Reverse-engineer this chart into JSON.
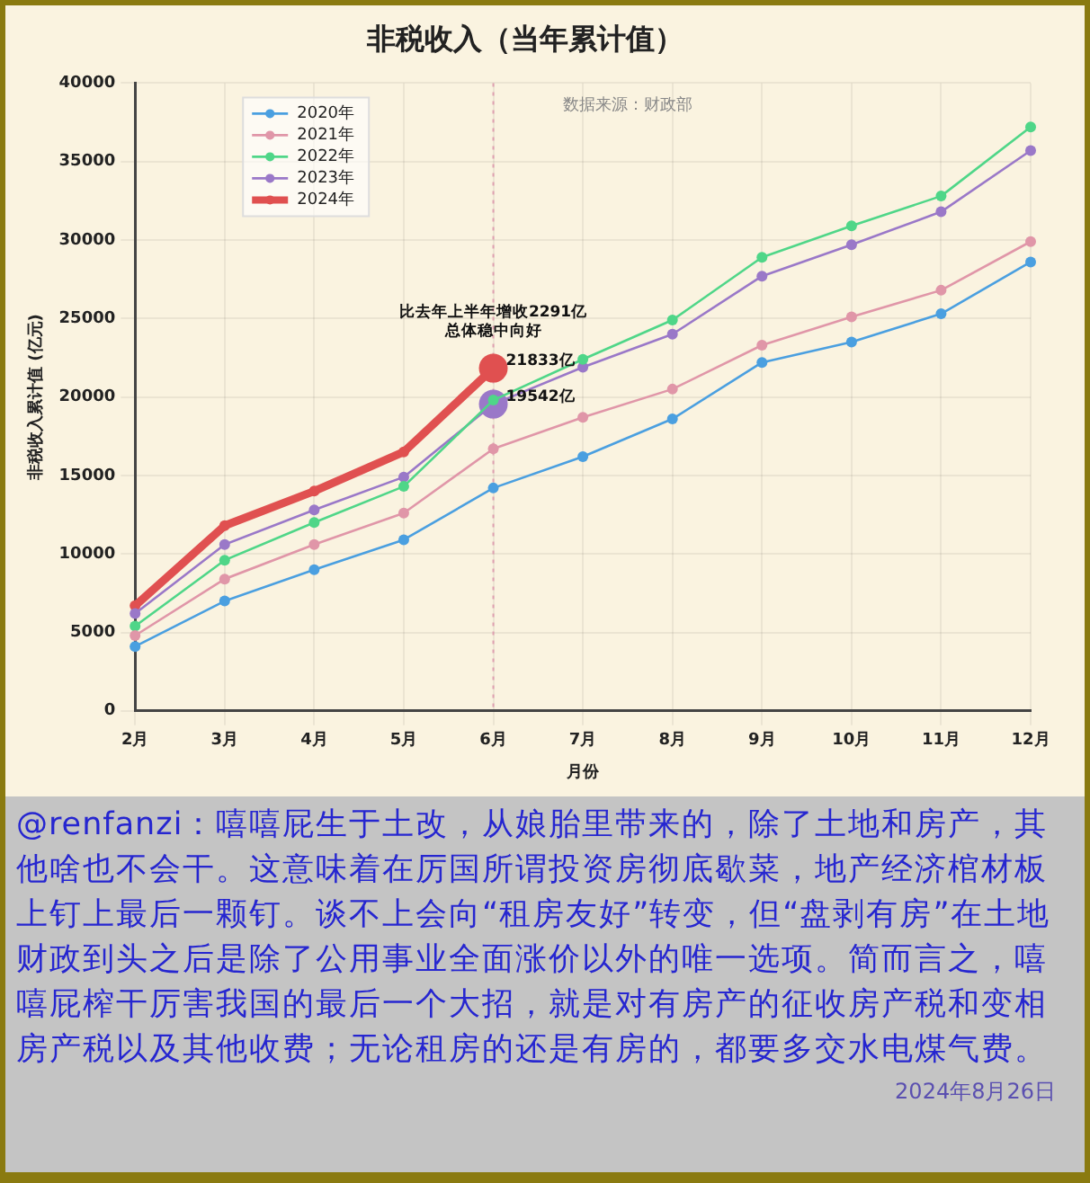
{
  "chart_data": {
    "type": "line",
    "title": "非税收入（当年累计值）",
    "xlabel": "月份",
    "ylabel": "非税收入累计值 (亿元)",
    "categories": [
      "2月",
      "3月",
      "4月",
      "5月",
      "6月",
      "7月",
      "8月",
      "9月",
      "10月",
      "11月",
      "12月"
    ],
    "series": [
      {
        "name": "2020年",
        "color": "#4a9fe0",
        "values": [
          4100,
          7000,
          9000,
          10900,
          14200,
          16200,
          18600,
          22200,
          23500,
          25300,
          28600
        ]
      },
      {
        "name": "2021年",
        "color": "#e096a8",
        "values": [
          4800,
          8400,
          10600,
          12600,
          16700,
          18700,
          20500,
          23300,
          25100,
          26800,
          29900
        ]
      },
      {
        "name": "2022年",
        "color": "#4fd688",
        "values": [
          5400,
          9600,
          12000,
          14300,
          19800,
          22400,
          24900,
          28900,
          30900,
          32800,
          37200
        ]
      },
      {
        "name": "2023年",
        "color": "#9a78c8",
        "values": [
          6200,
          10600,
          12800,
          14900,
          19542,
          21900,
          24000,
          27700,
          29700,
          31800,
          35700
        ]
      },
      {
        "name": "2024年",
        "color": "#e05050",
        "values": [
          6700,
          11800,
          14000,
          16500,
          21833,
          null,
          null,
          null,
          null,
          null,
          null
        ]
      }
    ],
    "ylim": [
      0,
      40000
    ],
    "yticks": [
      0,
      5000,
      10000,
      15000,
      20000,
      25000,
      30000,
      35000,
      40000
    ],
    "grid": true,
    "legend": "top left",
    "marker": "circle",
    "line_style": "solid",
    "ref_lines": [
      {
        "axis": "x",
        "value": "6月",
        "color": "#e0a0b0",
        "line_style": "dotted"
      }
    ],
    "annotations": [
      "数据来源：财政部",
      {
        "text": "比去年上半年增收2291亿",
        "x": "6月",
        "y": 25400
      },
      {
        "text": "总体稳中向好",
        "x": "6月",
        "y": 24200
      },
      {
        "text": "21833亿",
        "x": "6月",
        "y": 21833
      },
      {
        "text": "19542亿",
        "x": "6月",
        "y": 19542
      },
      "@renfanzi：嘻嘻屁生于土改，从娘胎里带来的，除了土地和房产，其他啥也不会干。这意味着在厉国所谓投资房彻底歇菜，地产经济棺材板上钉上最后一颗钉。谈不上会向“租房友好”转变，但“盘剥有房”在土地财政到头之后是除了公用事业全面涨价以外的唯一选项。简而言之，嘻嘻屁榨干厉害我国的最后一个大招，就是对有房产的征收房产税和变相房产税以及其他收费；无论租房的还是有房的，都要多交水电煤气费。",
      "2024年8月26日"
    ]
  }
}
